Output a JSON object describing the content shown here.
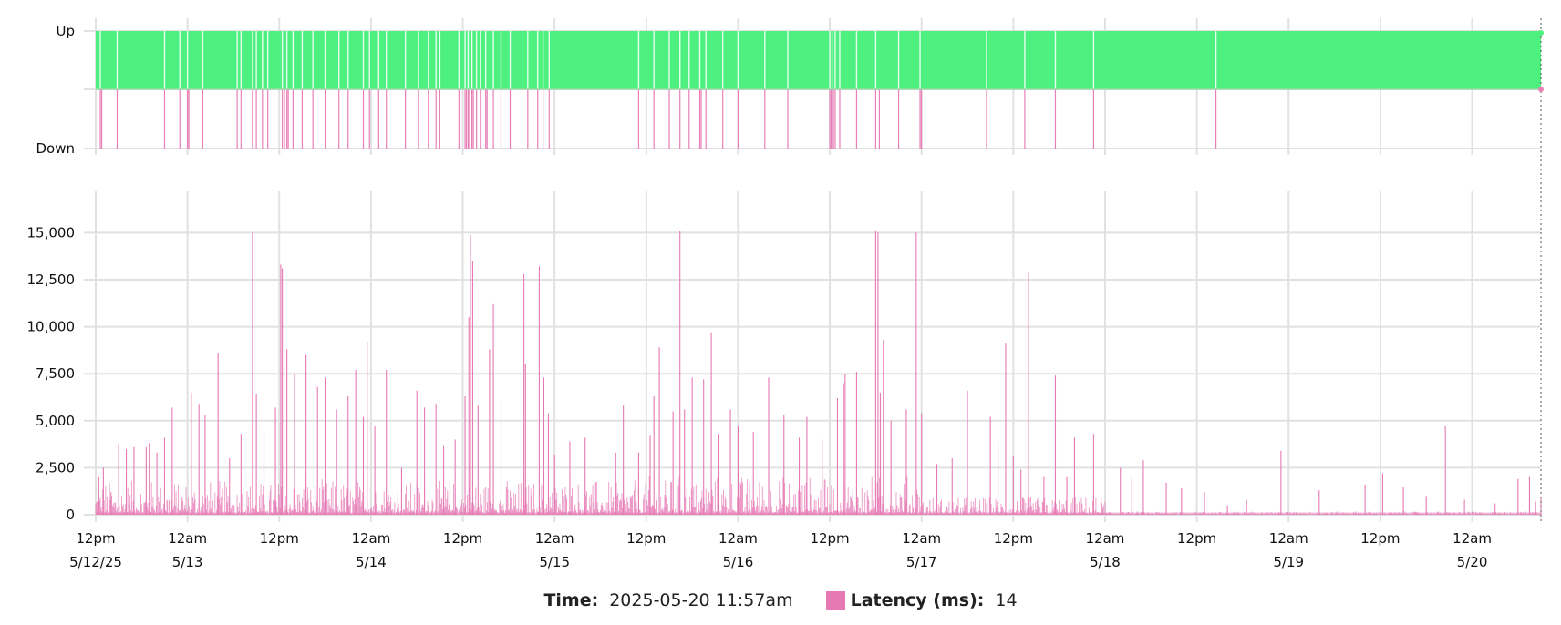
{
  "colors": {
    "up": "#4ef07f",
    "down": "#e87fb7",
    "latency": "#e678b4",
    "grid": "#e1e1e1"
  },
  "chart_data": [
    {
      "type": "area",
      "panel": "status",
      "y_ticks": [
        {
          "value": 1,
          "label": "Up"
        },
        {
          "value": 0,
          "label": "Down"
        }
      ],
      "x_range": [
        0,
        189
      ],
      "outage_hours": [
        0.6,
        2.8,
        9,
        11,
        12,
        14,
        18.5,
        19,
        20.5,
        21,
        21.8,
        22.5,
        24.4,
        25,
        25.8,
        27,
        28.4,
        30,
        31.8,
        33,
        35,
        35.8,
        37,
        38,
        40.5,
        42.2,
        43.5,
        44.5,
        45,
        47.5,
        48.3,
        48.7,
        49.2,
        49.8,
        50.3,
        51,
        52,
        53,
        54.2,
        56.5,
        57.8,
        58.5,
        59.3,
        71,
        73,
        75,
        76.4,
        77.6,
        79,
        79.8,
        82,
        84,
        87.5,
        90.5,
        96,
        96.3,
        96.7,
        97.3,
        99.5,
        102,
        105,
        107.8,
        116.5,
        121.5,
        125.5,
        130.5,
        146.5
      ],
      "last_outage_hours": [
        0.6,
        12,
        24.5,
        25,
        48.3,
        48.7,
        49.2,
        50.2,
        51,
        79,
        96,
        96.3,
        102.3,
        107.8
      ]
    },
    {
      "type": "line",
      "panel": "latency",
      "series": [
        {
          "name": "Latency (ms)"
        }
      ],
      "x_range": [
        0,
        189
      ],
      "ylim": [
        0,
        17200
      ],
      "y_ticks": [
        {
          "value": 0,
          "label": "0"
        },
        {
          "value": 2500,
          "label": "2,500"
        },
        {
          "value": 5000,
          "label": "5,000"
        },
        {
          "value": 7500,
          "label": "7,500"
        },
        {
          "value": 10000,
          "label": "10,000"
        },
        {
          "value": 12500,
          "label": "12,500"
        },
        {
          "value": 15000,
          "label": "15,000"
        }
      ],
      "x_ticks": [
        {
          "value": 0,
          "line1": "12pm",
          "line2": "5/12/25"
        },
        {
          "value": 12,
          "line1": "12am",
          "line2": "5/13"
        },
        {
          "value": 24,
          "line1": "12pm",
          "line2": ""
        },
        {
          "value": 36,
          "line1": "12am",
          "line2": "5/14"
        },
        {
          "value": 48,
          "line1": "12pm",
          "line2": ""
        },
        {
          "value": 60,
          "line1": "12am",
          "line2": "5/15"
        },
        {
          "value": 72,
          "line1": "12pm",
          "line2": ""
        },
        {
          "value": 84,
          "line1": "12am",
          "line2": "5/16"
        },
        {
          "value": 96,
          "line1": "12pm",
          "line2": ""
        },
        {
          "value": 108,
          "line1": "12am",
          "line2": "5/17"
        },
        {
          "value": 120,
          "line1": "12pm",
          "line2": ""
        },
        {
          "value": 132,
          "line1": "12am",
          "line2": "5/18"
        },
        {
          "value": 144,
          "line1": "12pm",
          "line2": ""
        },
        {
          "value": 156,
          "line1": "12am",
          "line2": "5/19"
        },
        {
          "value": 168,
          "line1": "12pm",
          "line2": ""
        },
        {
          "value": 180,
          "line1": "12am",
          "line2": "5/20"
        }
      ],
      "segments": [
        {
          "from": 0,
          "to": 72,
          "base": 250,
          "amp": 1700
        },
        {
          "from": 72,
          "to": 108,
          "base": 250,
          "amp": 1900
        },
        {
          "from": 108,
          "to": 132,
          "base": 120,
          "amp": 900
        },
        {
          "from": 132,
          "to": 189,
          "base": 40,
          "amp": 160
        }
      ],
      "peaks": [
        [
          0.4,
          2000
        ],
        [
          1,
          2500
        ],
        [
          2,
          1200
        ],
        [
          3,
          3800
        ],
        [
          4,
          3500
        ],
        [
          5,
          3600
        ],
        [
          6.6,
          3600
        ],
        [
          7,
          3800
        ],
        [
          8,
          3300
        ],
        [
          9,
          4100
        ],
        [
          10,
          5700
        ],
        [
          12.5,
          6500
        ],
        [
          13.5,
          5900
        ],
        [
          14.3,
          5300
        ],
        [
          16,
          8600
        ],
        [
          17.5,
          3000
        ],
        [
          19,
          4300
        ],
        [
          20.5,
          15000
        ],
        [
          21,
          6400
        ],
        [
          22,
          4500
        ],
        [
          23.5,
          5700
        ],
        [
          24.2,
          13300
        ],
        [
          24.4,
          13100
        ],
        [
          25,
          8800
        ],
        [
          26,
          7500
        ],
        [
          27.5,
          8500
        ],
        [
          29,
          6800
        ],
        [
          30,
          7300
        ],
        [
          31.5,
          5600
        ],
        [
          33,
          6300
        ],
        [
          34,
          7700
        ],
        [
          35,
          5200
        ],
        [
          35.5,
          9200
        ],
        [
          36.5,
          4700
        ],
        [
          38,
          7700
        ],
        [
          40,
          2500
        ],
        [
          42,
          6600
        ],
        [
          43,
          5700
        ],
        [
          44.5,
          5900
        ],
        [
          45.5,
          3700
        ],
        [
          47,
          4000
        ],
        [
          48.3,
          6300
        ],
        [
          48.8,
          10500
        ],
        [
          49,
          14900
        ],
        [
          49.3,
          13500
        ],
        [
          50,
          5800
        ],
        [
          51.5,
          8800
        ],
        [
          52,
          11200
        ],
        [
          53,
          6000
        ],
        [
          56,
          12800
        ],
        [
          56.2,
          8000
        ],
        [
          58,
          13200
        ],
        [
          58.6,
          7300
        ],
        [
          59.2,
          5400
        ],
        [
          60,
          3200
        ],
        [
          62,
          3900
        ],
        [
          64,
          4100
        ],
        [
          68,
          3300
        ],
        [
          69,
          5800
        ],
        [
          71,
          3300
        ],
        [
          72.5,
          4200
        ],
        [
          73,
          6300
        ],
        [
          73.7,
          8900
        ],
        [
          75.5,
          5500
        ],
        [
          76.4,
          15100
        ],
        [
          77,
          5600
        ],
        [
          78,
          7300
        ],
        [
          79.5,
          7200
        ],
        [
          80.5,
          9700
        ],
        [
          81.5,
          4300
        ],
        [
          83,
          5600
        ],
        [
          84,
          4700
        ],
        [
          86,
          4400
        ],
        [
          88,
          7300
        ],
        [
          90,
          5300
        ],
        [
          92,
          4100
        ],
        [
          93,
          5200
        ],
        [
          95,
          4000
        ],
        [
          97,
          6200
        ],
        [
          97.8,
          7000
        ],
        [
          98,
          7500
        ],
        [
          99.5,
          7600
        ],
        [
          102,
          15100
        ],
        [
          102.3,
          15000
        ],
        [
          102.6,
          6500
        ],
        [
          103,
          9300
        ],
        [
          104,
          5000
        ],
        [
          106,
          5600
        ],
        [
          107.3,
          15000
        ],
        [
          108,
          5400
        ],
        [
          110,
          2700
        ],
        [
          112,
          3000
        ],
        [
          114,
          6600
        ],
        [
          117,
          5200
        ],
        [
          118,
          3900
        ],
        [
          119,
          9100
        ],
        [
          120,
          3100
        ],
        [
          121,
          2400
        ],
        [
          122,
          12900
        ],
        [
          124,
          2000
        ],
        [
          125.5,
          7400
        ],
        [
          127,
          2000
        ],
        [
          128,
          4100
        ],
        [
          130.5,
          4300
        ],
        [
          134,
          2500
        ],
        [
          135.5,
          2000
        ],
        [
          137,
          2900
        ],
        [
          140,
          1700
        ],
        [
          142,
          1400
        ],
        [
          145,
          1200
        ],
        [
          148,
          500
        ],
        [
          150.5,
          800
        ],
        [
          155,
          3400
        ],
        [
          160,
          1300
        ],
        [
          166,
          1600
        ],
        [
          168.3,
          2200
        ],
        [
          171,
          1500
        ],
        [
          174,
          1000
        ],
        [
          176.5,
          4700
        ],
        [
          179,
          800
        ],
        [
          183,
          600
        ],
        [
          186,
          1900
        ],
        [
          187.5,
          2000
        ],
        [
          188.3,
          700
        ],
        [
          189,
          900
        ]
      ]
    }
  ],
  "legend": {
    "time_label": "Time:",
    "time_value": "2025-05-20 11:57am",
    "latency_label": "Latency (ms):",
    "latency_value": "14"
  }
}
